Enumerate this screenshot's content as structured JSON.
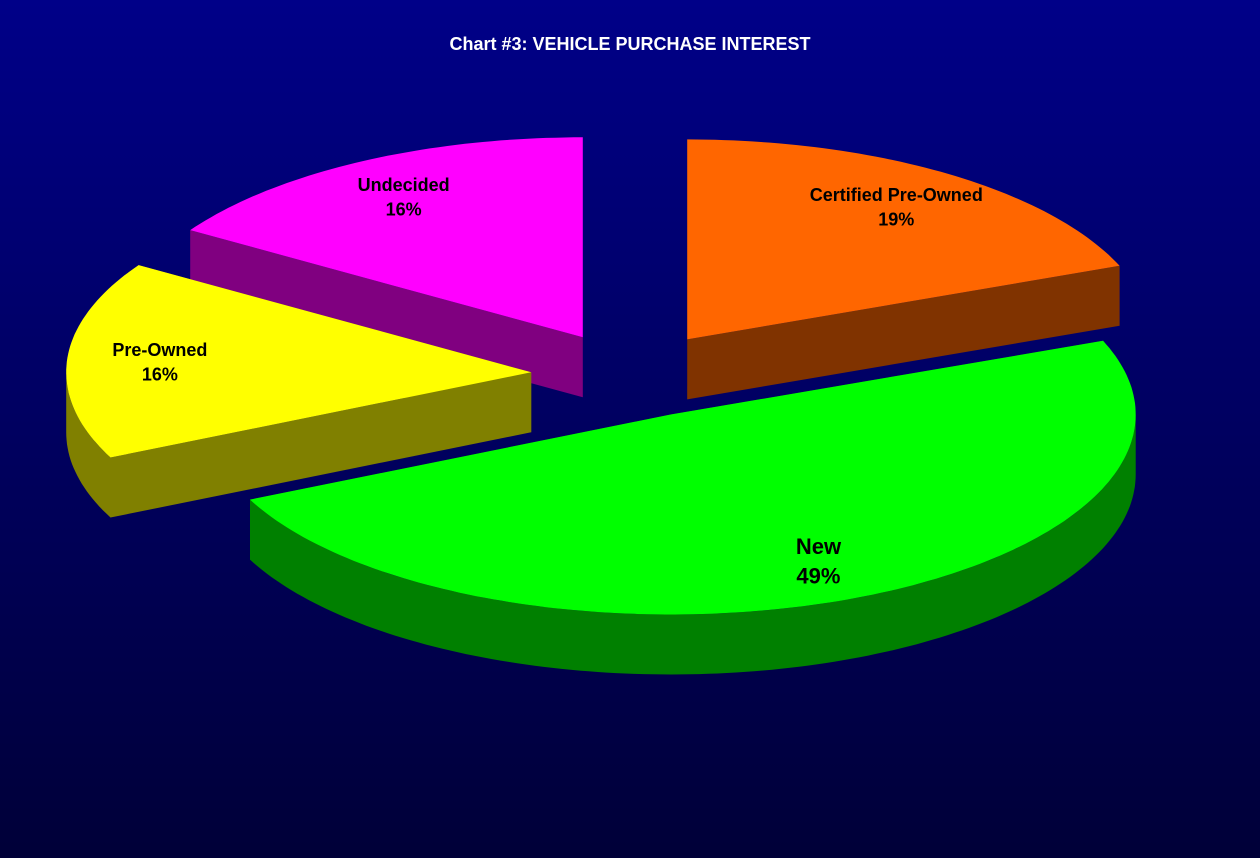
{
  "chart_data": {
    "type": "pie",
    "title": "Chart #3: VEHICLE PURCHASE INTEREST",
    "categories": [
      "Certified Pre-Owned",
      "New",
      "Pre-Owned",
      "Undecided"
    ],
    "values": [
      19,
      49,
      16,
      16
    ],
    "value_labels": [
      "19%",
      "49%",
      "16%",
      "16%"
    ],
    "colors": [
      "#ff6600",
      "#00ff00",
      "#ffff00",
      "#ff00ff"
    ]
  }
}
